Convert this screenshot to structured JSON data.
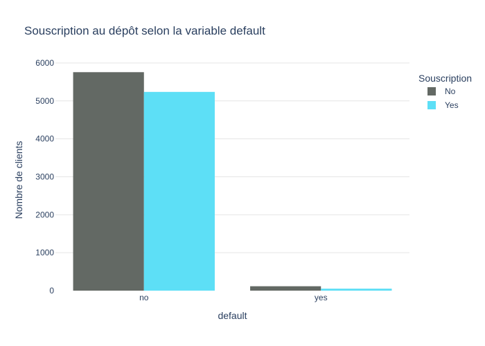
{
  "chart_data": {
    "type": "bar",
    "title": "Souscription au dépôt selon la variable default",
    "xlabel": "default",
    "ylabel": "Nombre de clients",
    "categories": [
      "no",
      "yes"
    ],
    "series": [
      {
        "name": "No",
        "values": [
          5757,
          116
        ],
        "color": "#636964"
      },
      {
        "name": "Yes",
        "values": [
          5237,
          52
        ],
        "color": "#5ddff6"
      }
    ],
    "yticks": [
      0,
      1000,
      2000,
      3000,
      4000,
      5000,
      6000
    ],
    "ylim": [
      0,
      6200
    ],
    "grid": true,
    "legend": {
      "title": "Souscription",
      "placement": "top-right"
    }
  }
}
